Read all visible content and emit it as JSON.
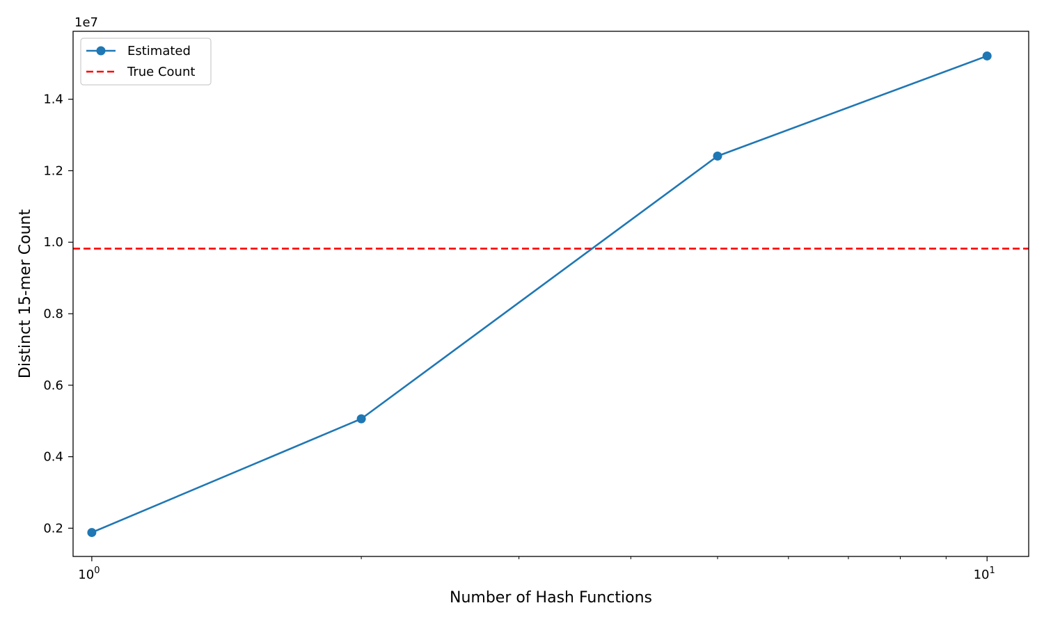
{
  "chart_data": {
    "type": "line",
    "title": "",
    "xlabel": "Number of Hash Functions",
    "ylabel": "Distinct 15-mer Count",
    "x_scale": "log",
    "xlim": [
      0.953,
      11.13
    ],
    "ylim": [
      1210000,
      15900000
    ],
    "y_offset_label": "1e7",
    "x_major_ticks": [
      {
        "value": 1,
        "base": "10",
        "exp": "0"
      },
      {
        "value": 10,
        "base": "10",
        "exp": "1"
      }
    ],
    "x_minor_ticks": [
      2,
      3,
      4,
      5,
      6,
      7,
      8,
      9
    ],
    "y_ticks": [
      {
        "value": 2000000,
        "label": "0.2"
      },
      {
        "value": 4000000,
        "label": "0.4"
      },
      {
        "value": 6000000,
        "label": "0.6"
      },
      {
        "value": 8000000,
        "label": "0.8"
      },
      {
        "value": 10000000,
        "label": "1.0"
      },
      {
        "value": 12000000,
        "label": "1.2"
      },
      {
        "value": 14000000,
        "label": "1.4"
      }
    ],
    "series": [
      {
        "name": "Estimated",
        "color": "#1f77b4",
        "marker": "circle",
        "x": [
          1,
          2,
          5,
          10
        ],
        "y": [
          1880000,
          5060000,
          12410000,
          15210000
        ]
      }
    ],
    "reference_lines": [
      {
        "name": "True Count",
        "color": "#ff0000",
        "style": "dashed",
        "y": 9820000
      }
    ],
    "legend": {
      "position": "top-left",
      "entries": [
        {
          "label": "Estimated",
          "kind": "line-marker",
          "color": "#1f77b4"
        },
        {
          "label": "True Count",
          "kind": "dashed",
          "color": "#ff0000"
        }
      ]
    },
    "grid": false
  }
}
